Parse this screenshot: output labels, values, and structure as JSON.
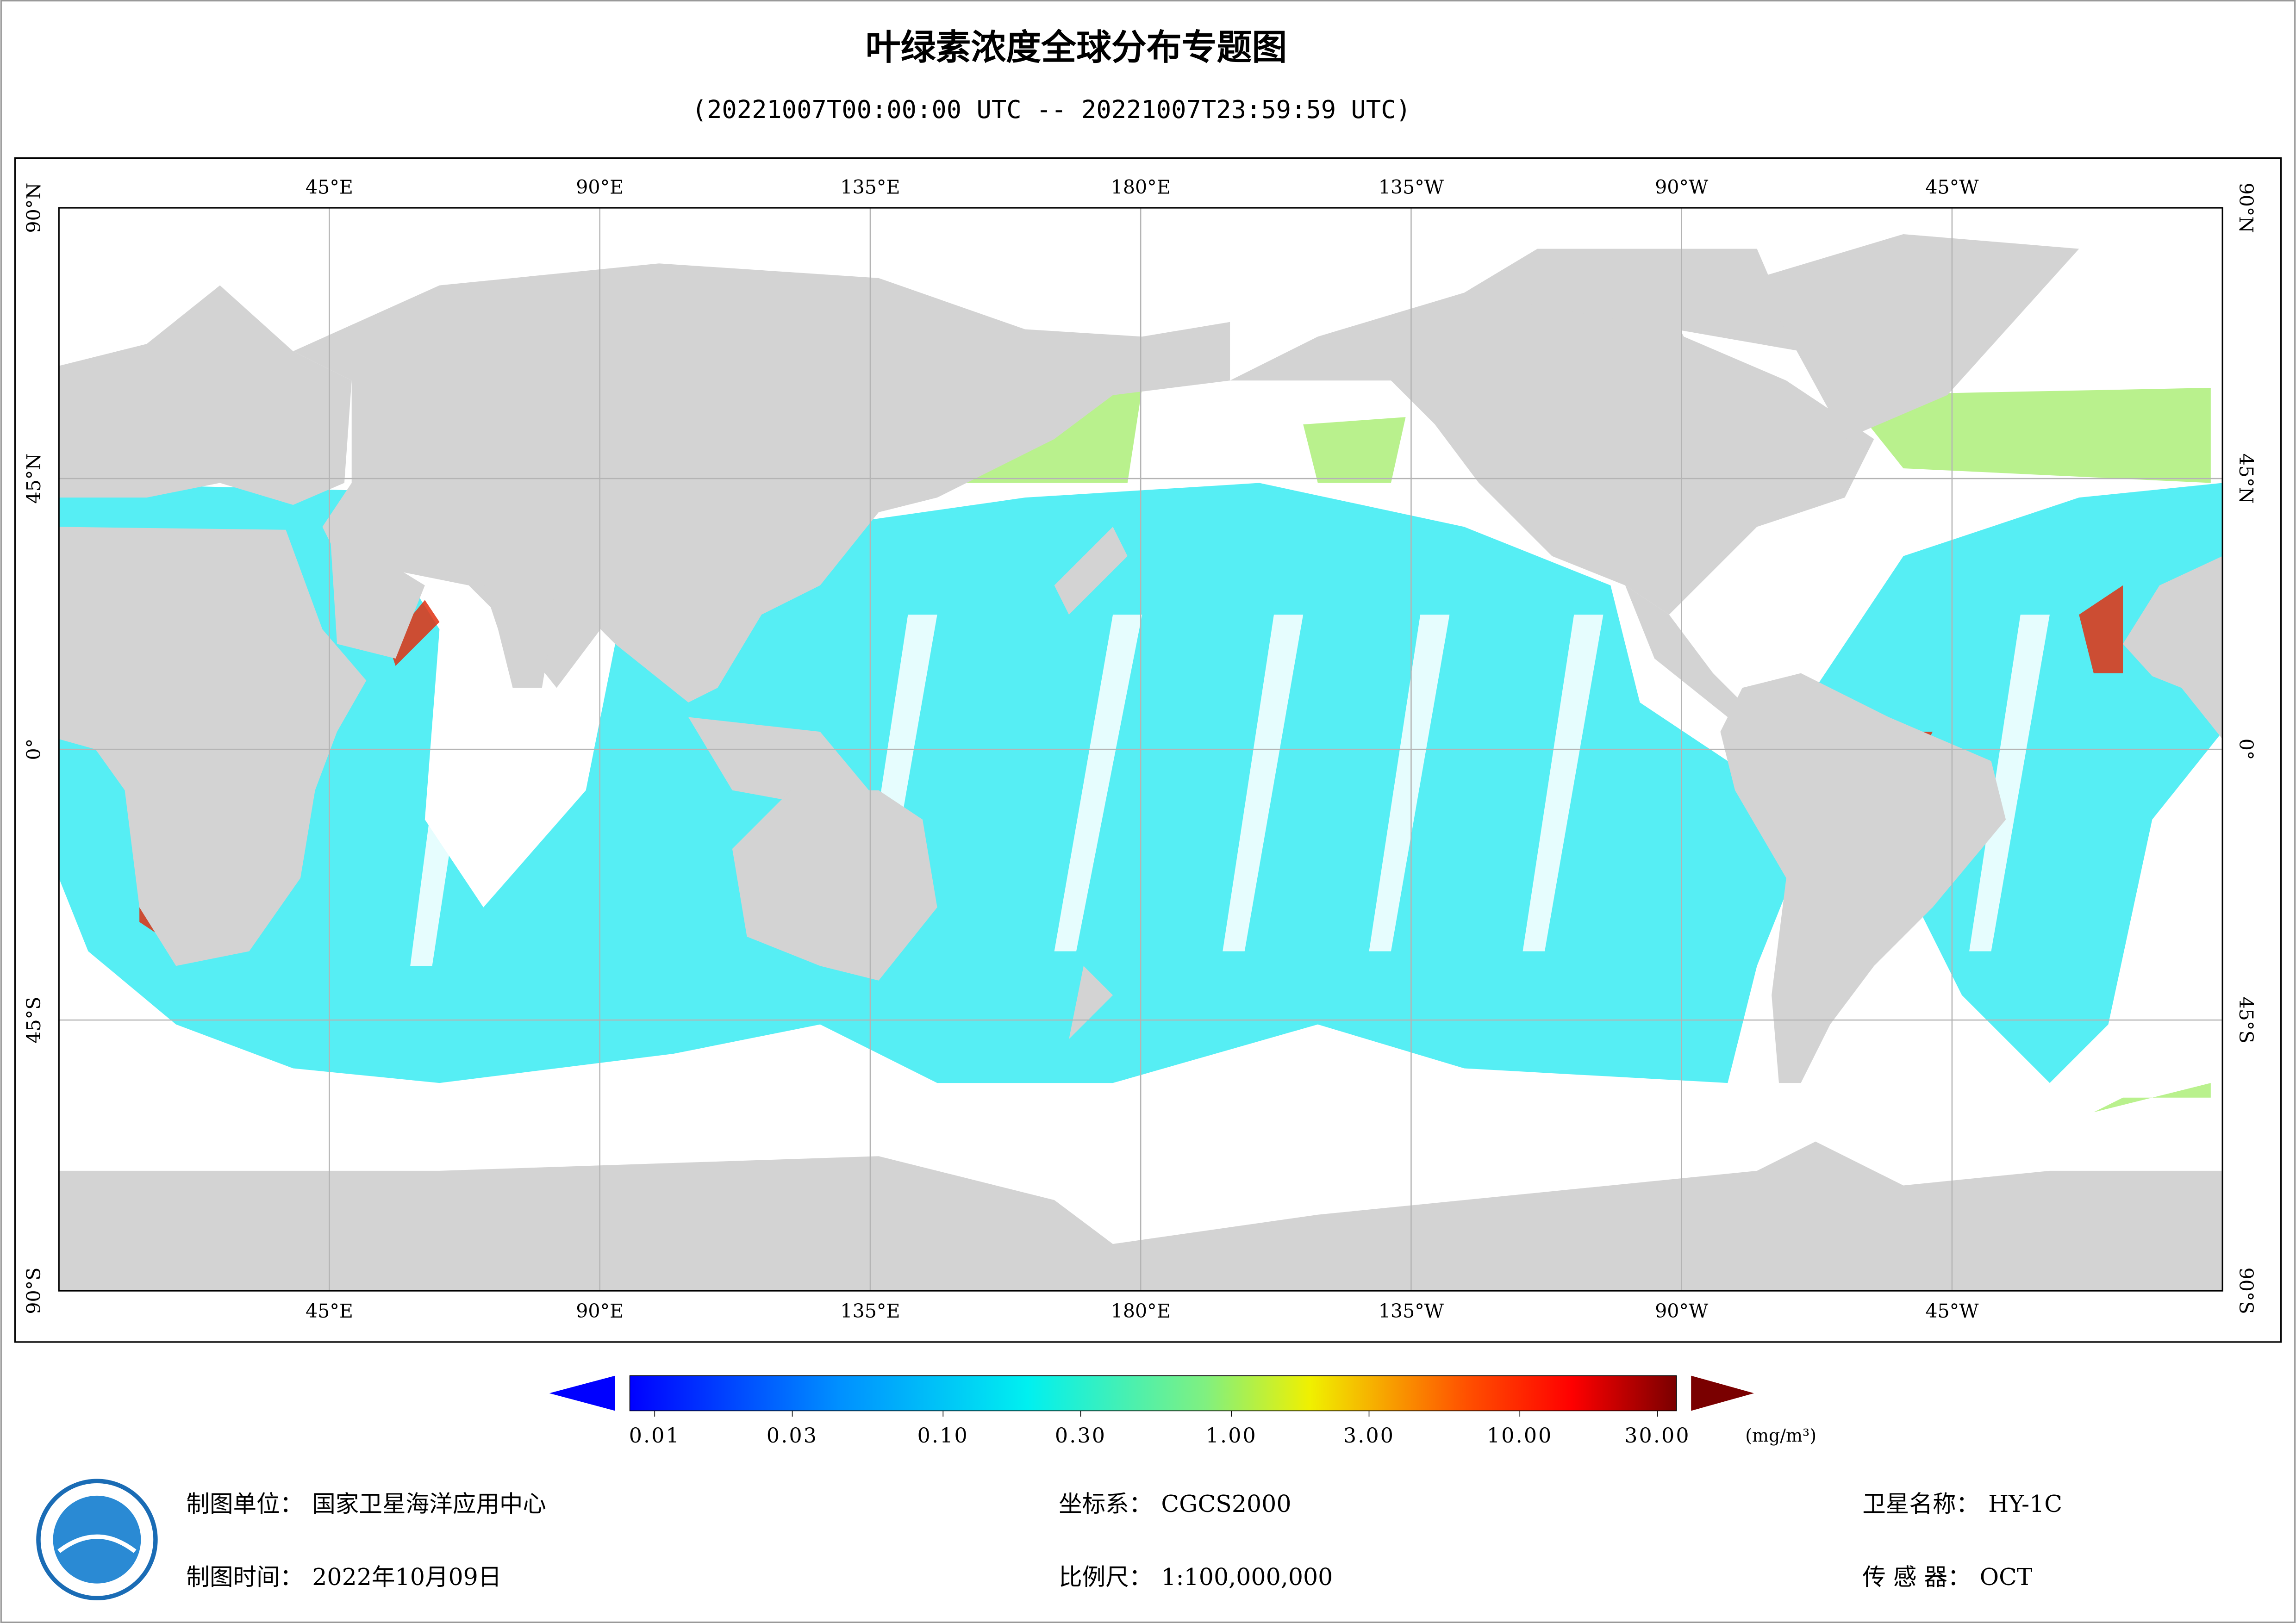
{
  "header": {
    "title": "叶绿素浓度全球分布专题图",
    "subtitle": "(20221007T00:00:00 UTC -- 20221007T23:59:59 UTC)"
  },
  "map": {
    "lon_ticks": [
      {
        "value": 45,
        "label": "45°E"
      },
      {
        "value": 90,
        "label": "90°E"
      },
      {
        "value": 135,
        "label": "135°E"
      },
      {
        "value": 180,
        "label": "180°E"
      },
      {
        "value": 225,
        "label": "135°W"
      },
      {
        "value": 270,
        "label": "90°W"
      },
      {
        "value": 315,
        "label": "45°W"
      }
    ],
    "lat_ticks": [
      {
        "value": 90,
        "label": "90°N"
      },
      {
        "value": 45,
        "label": "45°N"
      },
      {
        "value": 0,
        "label": "0°"
      },
      {
        "value": -45,
        "label": "45°S"
      },
      {
        "value": -90,
        "label": "90°S"
      }
    ],
    "xlim": [
      0,
      360
    ],
    "ylim": [
      -90,
      90
    ]
  },
  "colorbar": {
    "scale": "log",
    "lim": [
      0.01,
      30
    ],
    "ticks": [
      0.01,
      0.03,
      {
        "value": 0.1,
        "label": "0.10"
      },
      {
        "value": 0.3,
        "label": "0.30"
      },
      {
        "value": 1,
        "label": "1.00"
      },
      {
        "value": 3,
        "label": "3.00"
      },
      {
        "value": 10,
        "label": "10.00"
      },
      {
        "value": 30,
        "label": "30.00"
      }
    ],
    "unit": "(mg/m³)"
  },
  "footer": [
    {
      "label": "制图单位：",
      "value": "国家卫星海洋应用中心"
    },
    {
      "label": "坐标系：",
      "value": "CGCS2000"
    },
    {
      "label": "卫星名称：",
      "value": "HY-1C"
    },
    {
      "label": "制图时间：",
      "value": "2022年10月09日"
    },
    {
      "label": "比例尺：",
      "value": "1:100,000,000"
    },
    {
      "label": "传 感 器：",
      "value": "OCT"
    }
  ]
}
